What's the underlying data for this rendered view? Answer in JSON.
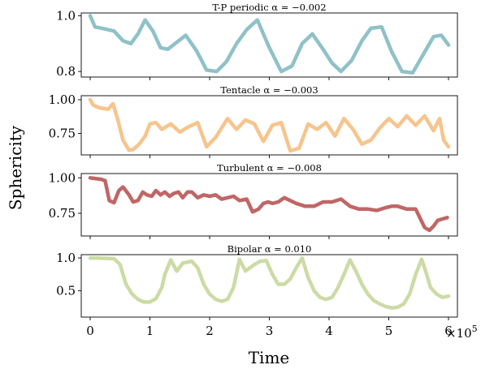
{
  "chart_data": {
    "type": "line",
    "xlabel": "Time",
    "ylabel": "Sphericity",
    "x_multiplier_label": "×10",
    "x_multiplier_exponent": "5",
    "xlim": [
      -15000,
      615000
    ],
    "x_ticks": [
      0,
      100000,
      200000,
      300000,
      400000,
      500000,
      600000
    ],
    "x_tick_labels": [
      "0",
      "1",
      "2",
      "3",
      "4",
      "5",
      "6"
    ],
    "grid": false,
    "panels": [
      {
        "title": "T-P periodic α = −0.002",
        "color": "#8fc1c8",
        "ylim": [
          0.78,
          1.01
        ],
        "y_ticks": [
          0.8,
          1.0
        ],
        "y_tick_labels": [
          "0.8",
          "1.0"
        ],
        "x": [
          0,
          8000,
          20000,
          40000,
          55000,
          68000,
          80000,
          92000,
          105000,
          118000,
          130000,
          145000,
          160000,
          178000,
          195000,
          212000,
          228000,
          245000,
          262000,
          280000,
          300000,
          320000,
          338000,
          355000,
          372000,
          390000,
          405000,
          420000,
          438000,
          455000,
          470000,
          488000,
          505000,
          522000,
          540000,
          560000,
          575000,
          588000,
          600000
        ],
        "y": [
          1.0,
          0.96,
          0.955,
          0.945,
          0.91,
          0.9,
          0.935,
          0.985,
          0.945,
          0.885,
          0.88,
          0.905,
          0.93,
          0.875,
          0.805,
          0.8,
          0.835,
          0.9,
          0.95,
          0.985,
          0.885,
          0.8,
          0.82,
          0.9,
          0.935,
          0.88,
          0.83,
          0.8,
          0.84,
          0.91,
          0.955,
          0.96,
          0.87,
          0.8,
          0.795,
          0.87,
          0.925,
          0.93,
          0.895
        ]
      },
      {
        "title": "Tentacle α = −0.003",
        "color": "#f7c48d",
        "ylim": [
          0.59,
          1.03
        ],
        "y_ticks": [
          0.75,
          1.0
        ],
        "y_tick_labels": [
          "0.75",
          "1.00"
        ],
        "x": [
          0,
          5000,
          15000,
          30000,
          38000,
          45000,
          55000,
          65000,
          72000,
          82000,
          92000,
          100000,
          110000,
          120000,
          135000,
          150000,
          165000,
          180000,
          195000,
          210000,
          230000,
          245000,
          260000,
          275000,
          290000,
          305000,
          320000,
          335000,
          350000,
          365000,
          380000,
          395000,
          410000,
          425000,
          440000,
          455000,
          470000,
          485000,
          500000,
          515000,
          530000,
          545000,
          560000,
          575000,
          585000,
          592000,
          600000
        ],
        "y": [
          1.0,
          0.96,
          0.94,
          0.93,
          0.97,
          0.87,
          0.7,
          0.625,
          0.63,
          0.67,
          0.73,
          0.82,
          0.83,
          0.78,
          0.82,
          0.76,
          0.8,
          0.83,
          0.65,
          0.72,
          0.86,
          0.78,
          0.85,
          0.82,
          0.69,
          0.81,
          0.83,
          0.62,
          0.64,
          0.82,
          0.78,
          0.83,
          0.73,
          0.86,
          0.78,
          0.67,
          0.7,
          0.79,
          0.86,
          0.8,
          0.88,
          0.81,
          0.88,
          0.77,
          0.86,
          0.7,
          0.65
        ]
      },
      {
        "title": "Turbulent α = −0.008",
        "color": "#c06666",
        "ylim": [
          0.59,
          1.03
        ],
        "y_ticks": [
          0.75,
          1.0
        ],
        "y_tick_labels": [
          "0.75",
          "1.00"
        ],
        "x": [
          0,
          8000,
          18000,
          25000,
          32000,
          40000,
          48000,
          55000,
          65000,
          72000,
          80000,
          88000,
          95000,
          103000,
          110000,
          118000,
          125000,
          133000,
          140000,
          148000,
          155000,
          163000,
          170000,
          180000,
          190000,
          200000,
          210000,
          220000,
          230000,
          240000,
          250000,
          262000,
          272000,
          282000,
          290000,
          298000,
          305000,
          315000,
          325000,
          335000,
          345000,
          360000,
          375000,
          390000,
          405000,
          420000,
          435000,
          450000,
          465000,
          480000,
          495000,
          505000,
          515000,
          530000,
          545000,
          560000,
          568000,
          575000,
          582000,
          590000,
          598000
        ],
        "y": [
          1.0,
          0.995,
          0.99,
          0.98,
          0.84,
          0.825,
          0.91,
          0.935,
          0.88,
          0.83,
          0.84,
          0.9,
          0.88,
          0.87,
          0.91,
          0.88,
          0.9,
          0.87,
          0.89,
          0.9,
          0.86,
          0.9,
          0.9,
          0.86,
          0.88,
          0.87,
          0.88,
          0.85,
          0.86,
          0.87,
          0.84,
          0.85,
          0.76,
          0.78,
          0.82,
          0.83,
          0.82,
          0.83,
          0.86,
          0.84,
          0.82,
          0.8,
          0.8,
          0.83,
          0.83,
          0.85,
          0.8,
          0.78,
          0.78,
          0.77,
          0.79,
          0.8,
          0.8,
          0.78,
          0.78,
          0.65,
          0.63,
          0.66,
          0.7,
          0.71,
          0.72
        ]
      },
      {
        "title": "Bipolar α = 0.010",
        "color": "#ccdba6",
        "ylim": [
          0.1,
          1.05
        ],
        "y_ticks": [
          0.5,
          1.0
        ],
        "y_tick_labels": [
          "0.5",
          "1.0"
        ],
        "x": [
          0,
          10000,
          25000,
          40000,
          50000,
          60000,
          70000,
          80000,
          90000,
          100000,
          110000,
          120000,
          125000,
          135000,
          145000,
          155000,
          170000,
          180000,
          190000,
          200000,
          210000,
          220000,
          230000,
          240000,
          250000,
          260000,
          275000,
          285000,
          295000,
          305000,
          315000,
          325000,
          335000,
          345000,
          355000,
          365000,
          375000,
          385000,
          395000,
          405000,
          415000,
          425000,
          435000,
          445000,
          455000,
          465000,
          475000,
          485000,
          495000,
          505000,
          515000,
          525000,
          535000,
          545000,
          555000,
          560000,
          565000,
          570000,
          580000,
          590000,
          600000
        ],
        "y": [
          1.0,
          1.0,
          0.995,
          0.99,
          0.9,
          0.6,
          0.45,
          0.37,
          0.33,
          0.33,
          0.38,
          0.55,
          0.75,
          0.97,
          0.8,
          0.92,
          0.95,
          0.85,
          0.6,
          0.45,
          0.37,
          0.34,
          0.37,
          0.55,
          0.98,
          0.8,
          0.9,
          0.95,
          0.96,
          0.75,
          0.6,
          0.6,
          0.68,
          0.85,
          1.0,
          0.7,
          0.5,
          0.4,
          0.37,
          0.4,
          0.55,
          0.75,
          0.97,
          0.8,
          0.6,
          0.45,
          0.35,
          0.3,
          0.26,
          0.24,
          0.25,
          0.3,
          0.45,
          0.75,
          0.98,
          0.85,
          0.7,
          0.55,
          0.45,
          0.4,
          0.42
        ]
      }
    ]
  }
}
